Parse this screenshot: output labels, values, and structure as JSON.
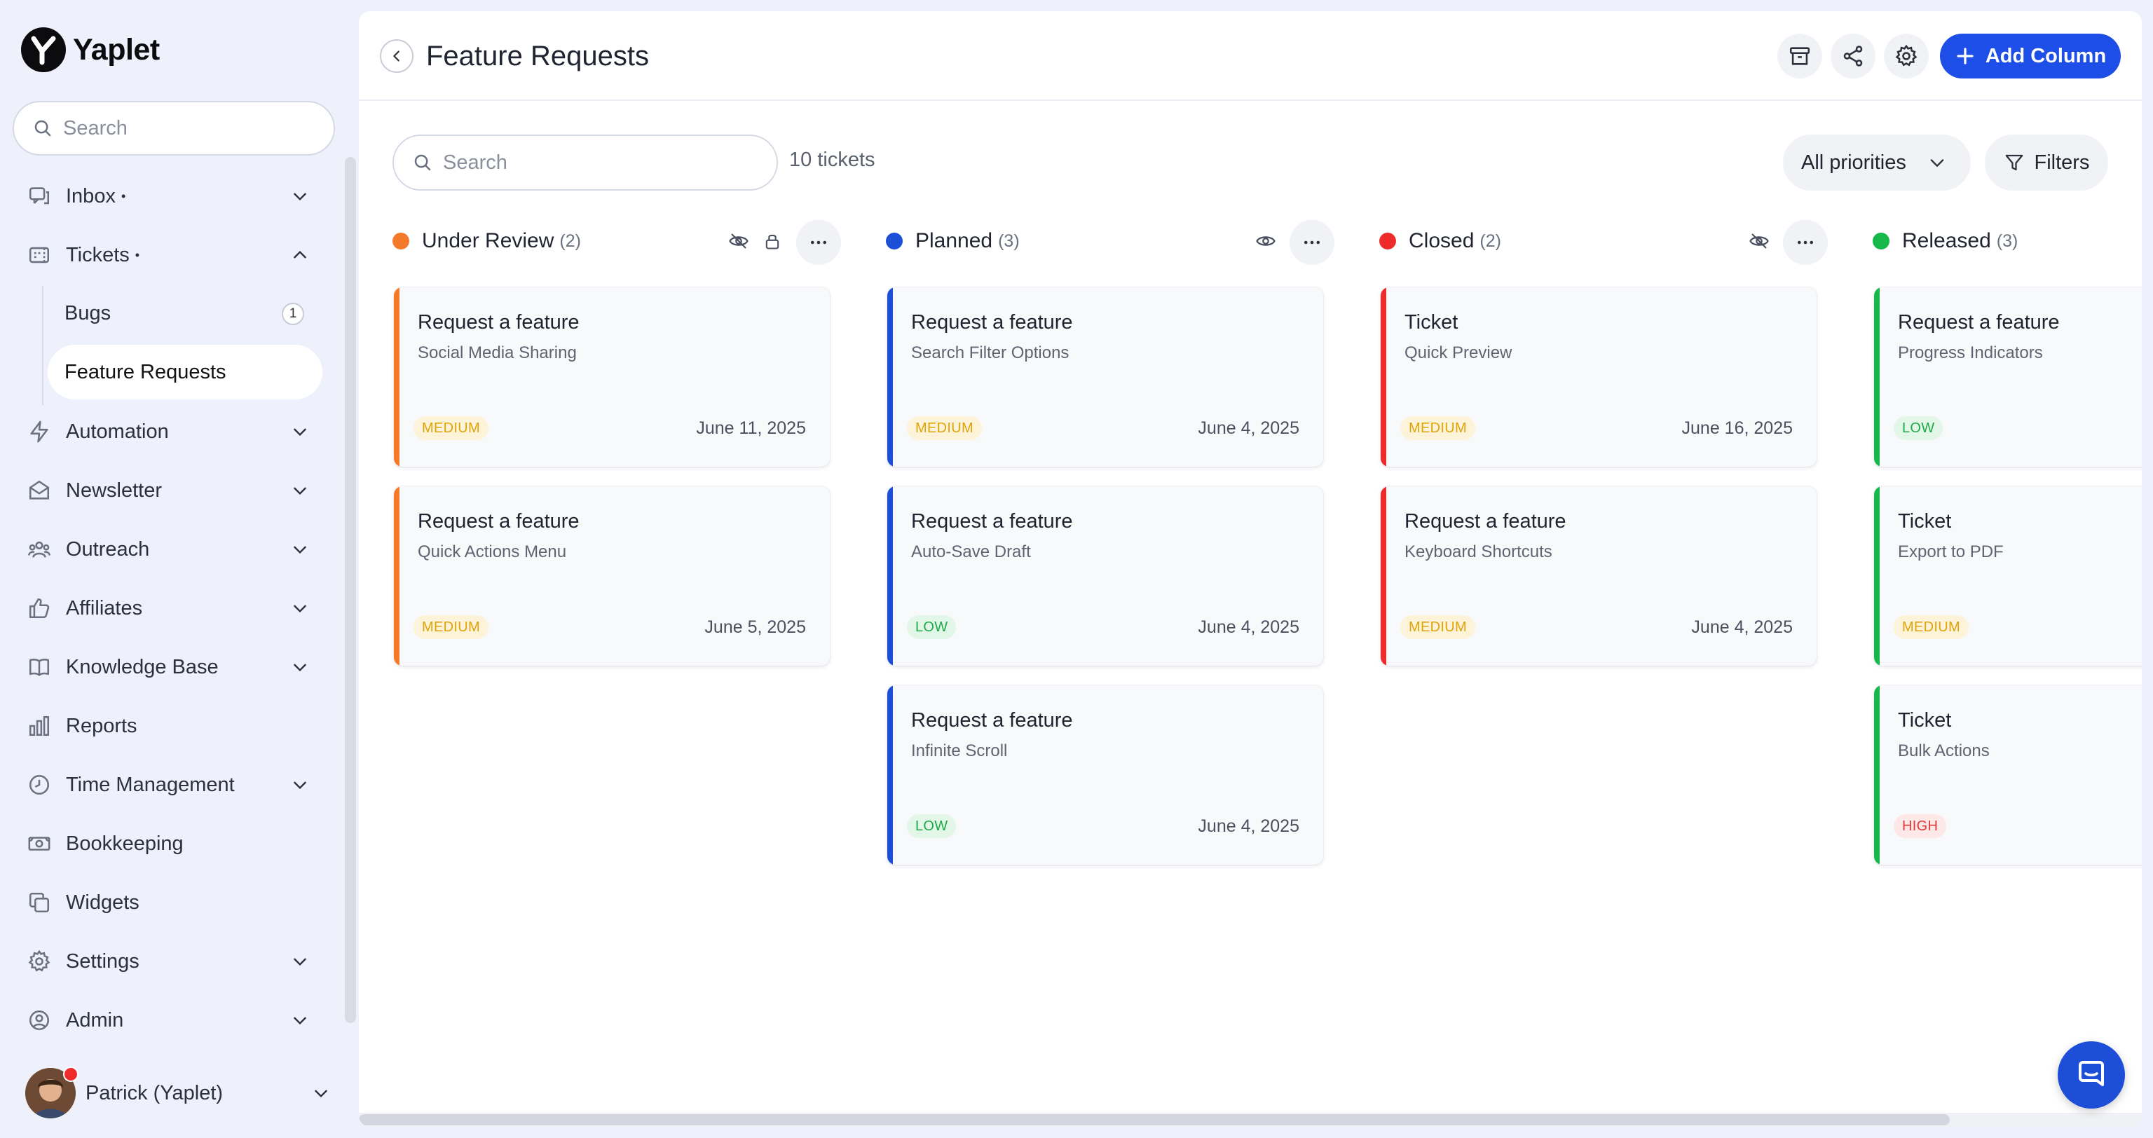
{
  "brand": {
    "name": "Yaplet"
  },
  "sidebar": {
    "search_placeholder": "Search",
    "items": [
      {
        "label": "Inbox",
        "dot": "•",
        "icon": "inbox-icon",
        "chevron": "down"
      },
      {
        "label": "Tickets",
        "dot": "•",
        "icon": "ticket-icon",
        "chevron": "up"
      },
      {
        "label": "Automation",
        "icon": "lightning-icon",
        "chevron": "down"
      },
      {
        "label": "Newsletter",
        "icon": "envelope-icon",
        "chevron": "down"
      },
      {
        "label": "Outreach",
        "icon": "users-icon",
        "chevron": "down"
      },
      {
        "label": "Affiliates",
        "icon": "thumbs-up-icon",
        "chevron": "down"
      },
      {
        "label": "Knowledge Base",
        "icon": "book-icon",
        "chevron": "down"
      },
      {
        "label": "Reports",
        "icon": "bar-chart-icon"
      },
      {
        "label": "Time Management",
        "icon": "clock-icon",
        "chevron": "down"
      },
      {
        "label": "Bookkeeping",
        "icon": "money-icon"
      },
      {
        "label": "Widgets",
        "icon": "widgets-icon"
      },
      {
        "label": "Settings",
        "icon": "gear-icon",
        "chevron": "down"
      },
      {
        "label": "Admin",
        "icon": "user-circle-icon",
        "chevron": "down"
      }
    ],
    "sub_items": [
      {
        "label": "Bugs",
        "count": "1"
      },
      {
        "label": "Feature Requests",
        "active": true
      }
    ],
    "user": {
      "name": "Patrick (Yaplet)"
    }
  },
  "header": {
    "title": "Feature Requests",
    "add_column_label": "Add Column"
  },
  "toolbar": {
    "search_placeholder": "Search",
    "ticket_count": "10 tickets",
    "priority_filter": "All priorities",
    "filters_label": "Filters"
  },
  "colors": {
    "accent": "#1e4ee8",
    "under_review": "#f47a2a",
    "planned": "#1d4ed8",
    "closed": "#ee2b2b",
    "released": "#16b84a"
  },
  "columns": [
    {
      "name": "Under Review",
      "count": "(2)",
      "cards": [
        {
          "title": "Request a feature",
          "subtitle": "Social Media Sharing",
          "priority": "MEDIUM",
          "date": "June 11, 2025"
        },
        {
          "title": "Request a feature",
          "subtitle": "Quick Actions Menu",
          "priority": "MEDIUM",
          "date": "June 5, 2025"
        }
      ]
    },
    {
      "name": "Planned",
      "count": "(3)",
      "cards": [
        {
          "title": "Request a feature",
          "subtitle": "Search Filter Options",
          "priority": "MEDIUM",
          "date": "June 4, 2025"
        },
        {
          "title": "Request a feature",
          "subtitle": "Auto-Save Draft",
          "priority": "LOW",
          "date": "June 4, 2025"
        },
        {
          "title": "Request a feature",
          "subtitle": "Infinite Scroll",
          "priority": "LOW",
          "date": "June 4, 2025"
        }
      ]
    },
    {
      "name": "Closed",
      "count": "(2)",
      "cards": [
        {
          "title": "Ticket",
          "subtitle": "Quick Preview",
          "priority": "MEDIUM",
          "date": "June 16, 2025"
        },
        {
          "title": "Request a feature",
          "subtitle": "Keyboard Shortcuts",
          "priority": "MEDIUM",
          "date": "June 4, 2025"
        }
      ]
    },
    {
      "name": "Released",
      "count": "(3)",
      "cards": [
        {
          "title": "Request a feature",
          "subtitle": "Progress Indicators",
          "priority": "LOW",
          "date": ""
        },
        {
          "title": "Ticket",
          "subtitle": "Export to PDF",
          "priority": "MEDIUM",
          "date": ""
        },
        {
          "title": "Ticket",
          "subtitle": "Bulk Actions",
          "priority": "HIGH",
          "date": ""
        }
      ]
    }
  ]
}
